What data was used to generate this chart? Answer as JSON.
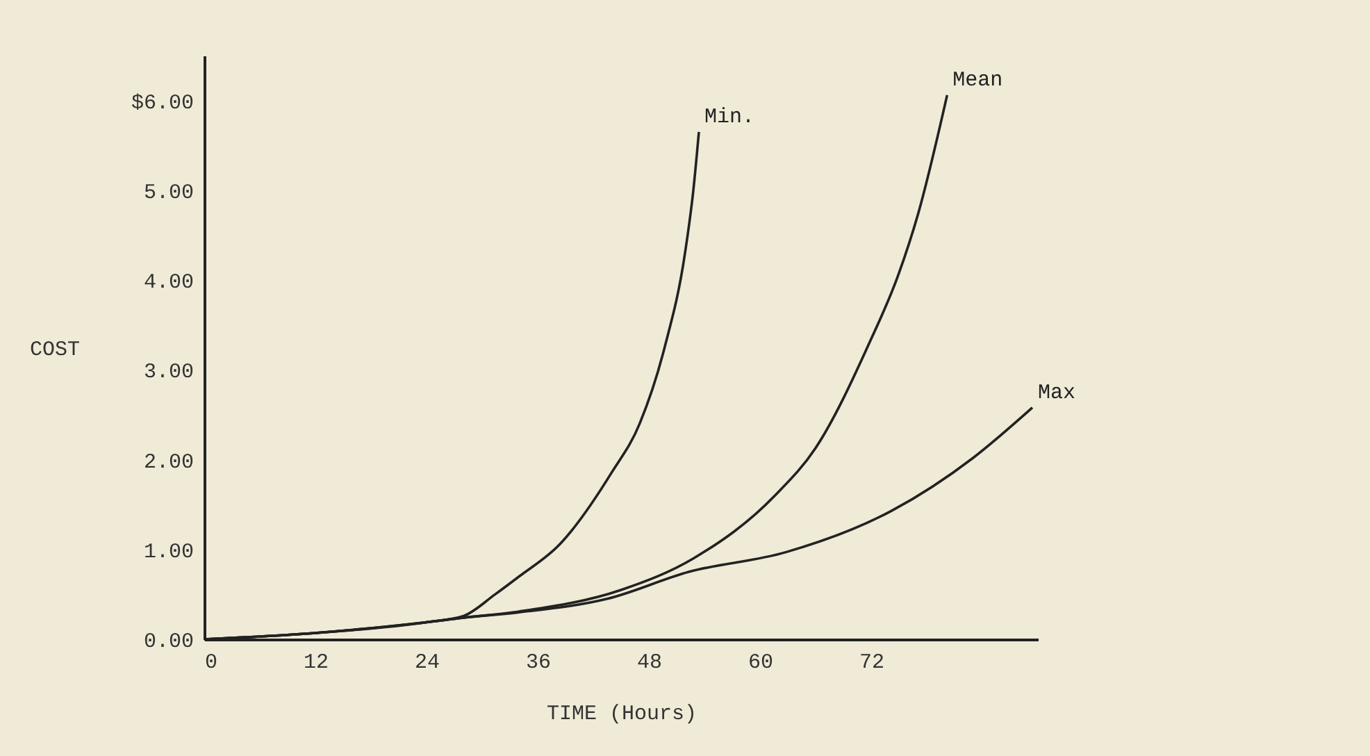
{
  "chart_data": {
    "type": "line",
    "xlabel": "TIME (Hours)",
    "ylabel": "COST",
    "xlim": [
      0,
      90
    ],
    "ylim": [
      0,
      6.5
    ],
    "xticks": [
      0,
      12,
      24,
      36,
      48,
      60,
      72
    ],
    "yticks": [
      {
        "value": 0,
        "label": "0.00"
      },
      {
        "value": 1,
        "label": "1.00"
      },
      {
        "value": 2,
        "label": "2.00"
      },
      {
        "value": 3,
        "label": "3.00"
      },
      {
        "value": 4,
        "label": "4.00"
      },
      {
        "value": 5,
        "label": "5.00"
      },
      {
        "value": 6,
        "label": "$6.00"
      }
    ],
    "grid": false,
    "legend": false,
    "line_style": "solid",
    "series": [
      {
        "name": "Min.",
        "color": "#222222",
        "x": [
          0,
          12,
          24,
          28,
          31.4,
          34,
          38.4,
          44,
          47,
          49.7,
          51.9,
          52.8,
          53.4
        ],
        "values": [
          0,
          0.07,
          0.19,
          0.26,
          0.5,
          0.7,
          1.06,
          1.86,
          2.4,
          3.25,
          4.3,
          5.0,
          5.65
        ]
      },
      {
        "name": "Mean",
        "color": "#222222",
        "x": [
          0,
          12,
          24,
          28,
          34,
          45,
          52.8,
          61.6,
          66,
          71.8,
          74.9,
          77.1,
          80.2
        ],
        "values": [
          0,
          0.07,
          0.19,
          0.24,
          0.31,
          0.55,
          0.9,
          1.6,
          2.13,
          3.3,
          4.05,
          4.75,
          6.06
        ]
      },
      {
        "name": "Max",
        "color": "#222222",
        "x": [
          0,
          12,
          24,
          28,
          34,
          43.5,
          52.3,
          62.8,
          74.2,
          83,
          89.4
        ],
        "values": [
          0,
          0.07,
          0.19,
          0.24,
          0.3,
          0.45,
          0.75,
          0.97,
          1.43,
          2.02,
          2.58
        ]
      }
    ]
  }
}
